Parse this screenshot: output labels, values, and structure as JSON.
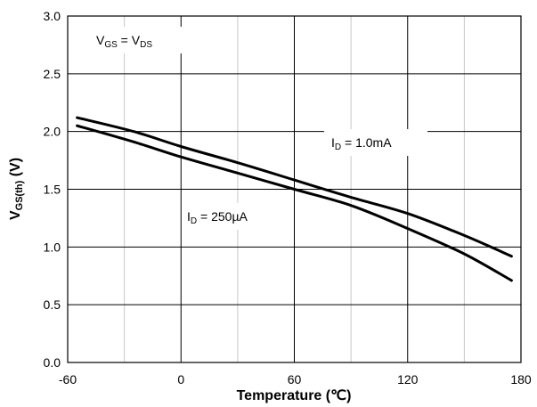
{
  "chart_data": {
    "type": "line",
    "xlabel": "Temperature (℃)",
    "ylabel": {
      "main": "V",
      "sub": "GS(th)",
      "suffix": " (V)"
    },
    "xlim": [
      -60,
      180
    ],
    "ylim": [
      0.0,
      3.0
    ],
    "x_ticks": [
      -60,
      0,
      60,
      120,
      180
    ],
    "x_tick_labels": [
      "-60",
      "0",
      "60",
      "120",
      "180"
    ],
    "x_grid_minor": [
      -30,
      30,
      90,
      150
    ],
    "y_ticks": [
      0.0,
      0.5,
      1.0,
      1.5,
      2.0,
      2.5,
      3.0
    ],
    "y_tick_labels": [
      "0.0",
      "0.5",
      "1.0",
      "1.5",
      "2.0",
      "2.5",
      "3.0"
    ],
    "grid": true,
    "condition": {
      "v1": "V",
      "s1": "GS",
      "mid": " = ",
      "v2": "V",
      "s2": "DS"
    },
    "series": [
      {
        "label": {
          "main": "I",
          "sub": "D",
          "rest": " = 1.0mA"
        },
        "color": "#000000",
        "x": [
          -55,
          -25,
          0,
          30,
          60,
          90,
          120,
          150,
          175
        ],
        "values": [
          2.12,
          2.0,
          1.87,
          1.73,
          1.58,
          1.43,
          1.29,
          1.1,
          0.92
        ]
      },
      {
        "label": {
          "main": "I",
          "sub": "D",
          "rest": " = 250µA"
        },
        "color": "#000000",
        "x": [
          -55,
          -25,
          0,
          30,
          60,
          90,
          120,
          150,
          175
        ],
        "values": [
          2.05,
          1.91,
          1.78,
          1.64,
          1.5,
          1.36,
          1.16,
          0.94,
          0.71
        ]
      }
    ]
  }
}
